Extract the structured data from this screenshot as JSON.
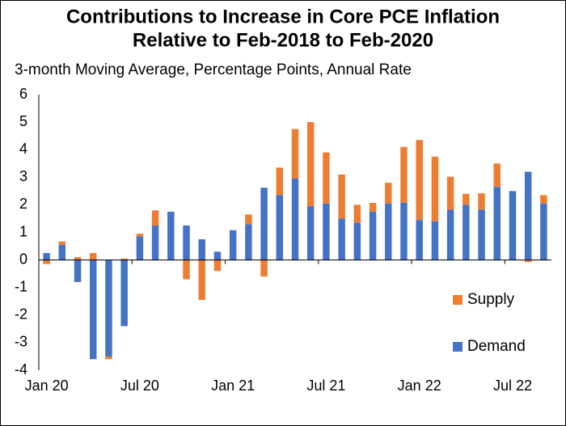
{
  "chart_data": {
    "type": "stacked_bar",
    "title": [
      "Contributions to Increase in Core PCE Inflation",
      "Relative to Feb-2018 to Feb-2020"
    ],
    "subtitle": "3-month Moving Average, Percentage Points, Annual Rate",
    "categories": [
      "Jan 20",
      null,
      null,
      null,
      null,
      null,
      "Jul 20",
      null,
      null,
      null,
      null,
      null,
      "Jan 21",
      null,
      null,
      null,
      null,
      null,
      "Jul 21",
      null,
      null,
      null,
      null,
      null,
      "Jan 22",
      null,
      null,
      null,
      null,
      null,
      "Jul 22",
      null,
      null
    ],
    "series": [
      {
        "name": "Demand",
        "color": "#4472c4",
        "values": [
          0.25,
          0.55,
          -0.8,
          -3.6,
          -3.5,
          -2.4,
          0.85,
          1.25,
          1.75,
          1.25,
          0.75,
          0.3,
          1.08,
          1.3,
          2.62,
          2.35,
          2.95,
          1.95,
          2.05,
          1.5,
          1.35,
          1.75,
          2.05,
          2.08,
          1.45,
          1.4,
          1.82,
          2.0,
          1.82,
          2.65,
          2.5,
          3.2,
          2.05
        ]
      },
      {
        "name": "Supply",
        "color": "#ed7d31",
        "values": [
          -0.15,
          0.12,
          0.1,
          0.25,
          -0.1,
          0.05,
          0.1,
          0.55,
          0,
          -0.7,
          -1.45,
          -0.4,
          0,
          0.35,
          -0.6,
          1.0,
          1.8,
          3.05,
          1.85,
          1.6,
          0.65,
          0.32,
          0.75,
          2.02,
          2.9,
          2.35,
          1.2,
          0.4,
          0.6,
          0.85,
          0,
          -0.08,
          0.3
        ]
      }
    ],
    "ylim": [
      -4,
      6
    ],
    "yticks": [
      -4,
      -3,
      -2,
      -1,
      0,
      1,
      2,
      3,
      4,
      5,
      6
    ],
    "legend": "right"
  }
}
